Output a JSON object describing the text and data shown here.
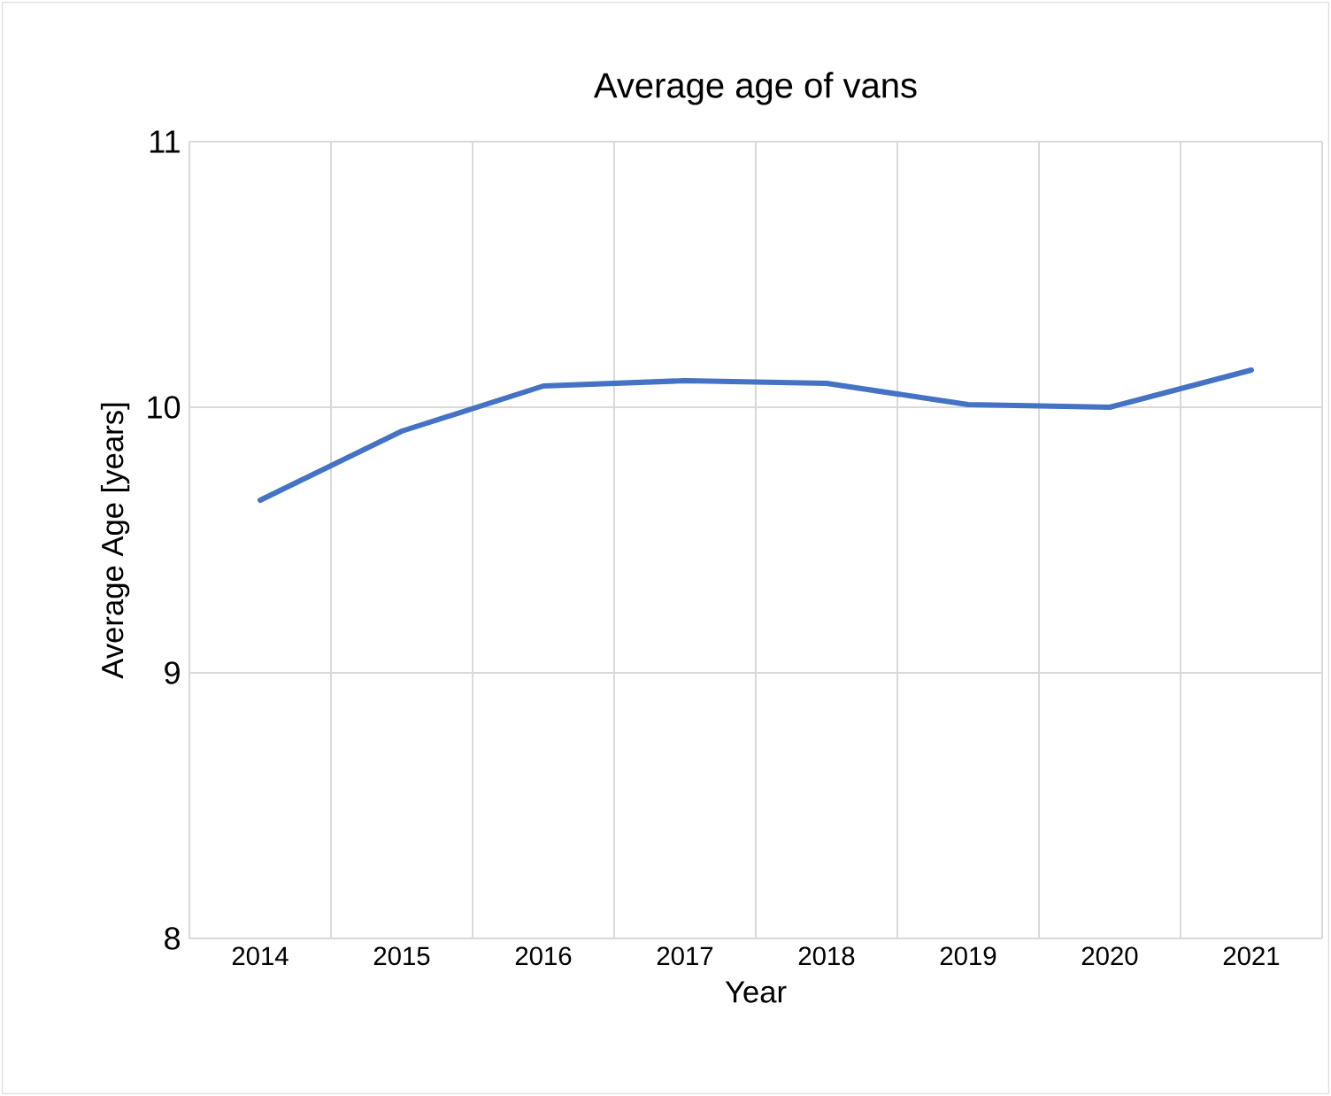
{
  "chart_data": {
    "type": "line",
    "title": "Average age of vans",
    "xlabel": "Year",
    "ylabel": "Average Age [years]",
    "categories": [
      "2014",
      "2015",
      "2016",
      "2017",
      "2018",
      "2019",
      "2020",
      "2021"
    ],
    "series": [
      {
        "color": "#4472c4",
        "values": [
          9.65,
          9.91,
          10.08,
          10.1,
          10.09,
          10.01,
          10.0,
          10.14
        ]
      }
    ],
    "ylim": [
      8,
      11
    ],
    "yticks": [
      8,
      9,
      10,
      11
    ],
    "grid": true,
    "legend": false,
    "marker": "none",
    "line_style": "solid"
  }
}
